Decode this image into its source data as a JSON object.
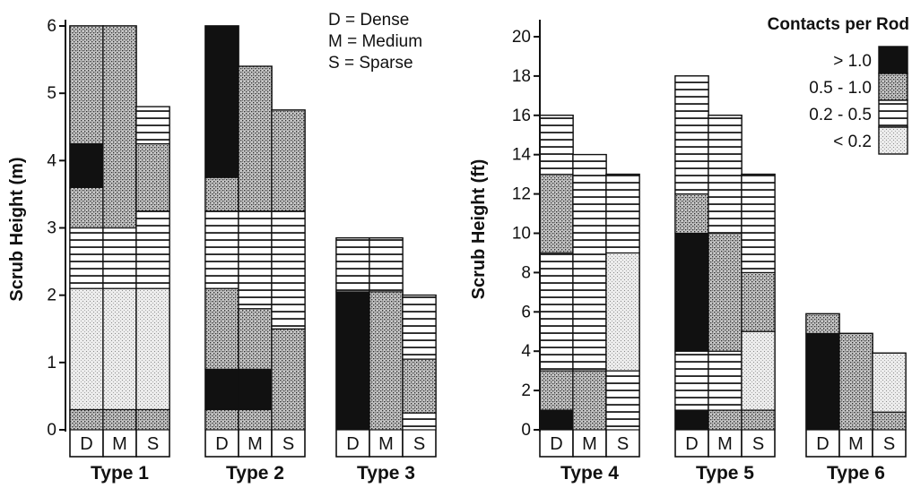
{
  "chart_data": [
    {
      "type": "bar",
      "stacked": true,
      "ylabel": "Scrub Height (m)",
      "ylim": [
        0,
        6
      ],
      "yticks": [
        "0",
        "1",
        "2",
        "3",
        "4",
        "5",
        "6"
      ],
      "categories": [
        "D",
        "M",
        "S"
      ],
      "notes": [
        "D = Dense",
        "M = Medium",
        "S = Sparse"
      ],
      "groups": [
        {
          "name": "Type 1",
          "bars": [
            {
              "cat": "D",
              "segments": [
                {
                  "class": "0.5 - 1.0",
                  "from": 0,
                  "to": 0.3
                },
                {
                  "class": "< 0.2",
                  "from": 0.3,
                  "to": 2.1
                },
                {
                  "class": "0.2 - 0.5",
                  "from": 2.1,
                  "to": 3.0
                },
                {
                  "class": "0.5 - 1.0",
                  "from": 3.0,
                  "to": 3.6
                },
                {
                  "class": "> 1.0",
                  "from": 3.6,
                  "to": 4.25
                },
                {
                  "class": "0.5 - 1.0",
                  "from": 4.25,
                  "to": 6.0
                }
              ]
            },
            {
              "cat": "M",
              "segments": [
                {
                  "class": "0.5 - 1.0",
                  "from": 0,
                  "to": 0.3
                },
                {
                  "class": "< 0.2",
                  "from": 0.3,
                  "to": 2.1
                },
                {
                  "class": "0.2 - 0.5",
                  "from": 2.1,
                  "to": 3.0
                },
                {
                  "class": "0.5 - 1.0",
                  "from": 3.0,
                  "to": 6.0
                }
              ]
            },
            {
              "cat": "S",
              "segments": [
                {
                  "class": "0.5 - 1.0",
                  "from": 0,
                  "to": 0.3
                },
                {
                  "class": "< 0.2",
                  "from": 0.3,
                  "to": 2.1
                },
                {
                  "class": "0.2 - 0.5",
                  "from": 2.1,
                  "to": 3.25
                },
                {
                  "class": "0.5 - 1.0",
                  "from": 3.25,
                  "to": 4.25
                },
                {
                  "class": "0.2 - 0.5",
                  "from": 4.25,
                  "to": 4.8
                }
              ]
            }
          ]
        },
        {
          "name": "Type 2",
          "bars": [
            {
              "cat": "D",
              "segments": [
                {
                  "class": "0.5 - 1.0",
                  "from": 0,
                  "to": 0.3
                },
                {
                  "class": "> 1.0",
                  "from": 0.3,
                  "to": 0.9
                },
                {
                  "class": "0.5 - 1.0",
                  "from": 0.9,
                  "to": 2.1
                },
                {
                  "class": "0.2 - 0.5",
                  "from": 2.1,
                  "to": 3.25
                },
                {
                  "class": "0.5 - 1.0",
                  "from": 3.25,
                  "to": 3.75
                },
                {
                  "class": "> 1.0",
                  "from": 3.75,
                  "to": 6.0
                }
              ]
            },
            {
              "cat": "M",
              "segments": [
                {
                  "class": "0.5 - 1.0",
                  "from": 0,
                  "to": 0.3
                },
                {
                  "class": "> 1.0",
                  "from": 0.3,
                  "to": 0.9
                },
                {
                  "class": "0.5 - 1.0",
                  "from": 0.9,
                  "to": 1.8
                },
                {
                  "class": "0.2 - 0.5",
                  "from": 1.8,
                  "to": 3.25
                },
                {
                  "class": "0.5 - 1.0",
                  "from": 3.25,
                  "to": 5.4
                }
              ]
            },
            {
              "cat": "S",
              "segments": [
                {
                  "class": "0.5 - 1.0",
                  "from": 0,
                  "to": 1.5
                },
                {
                  "class": "0.2 - 0.5",
                  "from": 1.5,
                  "to": 3.25
                },
                {
                  "class": "0.5 - 1.0",
                  "from": 3.25,
                  "to": 4.75
                }
              ]
            }
          ]
        },
        {
          "name": "Type 3",
          "bars": [
            {
              "cat": "D",
              "segments": [
                {
                  "class": "> 1.0",
                  "from": 0,
                  "to": 2.05
                },
                {
                  "class": "0.2 - 0.5",
                  "from": 2.05,
                  "to": 2.85
                }
              ]
            },
            {
              "cat": "M",
              "segments": [
                {
                  "class": "0.5 - 1.0",
                  "from": 0,
                  "to": 2.05
                },
                {
                  "class": "0.2 - 0.5",
                  "from": 2.05,
                  "to": 2.85
                }
              ]
            },
            {
              "cat": "S",
              "segments": [
                {
                  "class": "0.2 - 0.5",
                  "from": 0,
                  "to": 0.25
                },
                {
                  "class": "0.5 - 1.0",
                  "from": 0.25,
                  "to": 1.05
                },
                {
                  "class": "0.2 - 0.5",
                  "from": 1.05,
                  "to": 2.0
                }
              ]
            }
          ]
        }
      ]
    },
    {
      "type": "bar",
      "stacked": true,
      "ylabel": "Scrub Height (ft)",
      "ylim": [
        0,
        20
      ],
      "yticks": [
        "0",
        "2",
        "4",
        "6",
        "8",
        "10",
        "12",
        "14",
        "16",
        "18",
        "20"
      ],
      "categories": [
        "D",
        "M",
        "S"
      ],
      "groups": [
        {
          "name": "Type 4",
          "bars": [
            {
              "cat": "D",
              "segments": [
                {
                  "class": "> 1.0",
                  "from": 0,
                  "to": 1
                },
                {
                  "class": "0.5 - 1.0",
                  "from": 1,
                  "to": 3
                },
                {
                  "class": "0.2 - 0.5",
                  "from": 3,
                  "to": 9
                },
                {
                  "class": "0.5 - 1.0",
                  "from": 9,
                  "to": 13
                },
                {
                  "class": "0.2 - 0.5",
                  "from": 13,
                  "to": 16
                }
              ]
            },
            {
              "cat": "M",
              "segments": [
                {
                  "class": "0.5 - 1.0",
                  "from": 0,
                  "to": 3
                },
                {
                  "class": "0.2 - 0.5",
                  "from": 3,
                  "to": 14
                }
              ]
            },
            {
              "cat": "S",
              "segments": [
                {
                  "class": "0.2 - 0.5",
                  "from": 0,
                  "to": 3
                },
                {
                  "class": "< 0.2",
                  "from": 3,
                  "to": 9
                },
                {
                  "class": "0.2 - 0.5",
                  "from": 9,
                  "to": 13
                }
              ]
            }
          ]
        },
        {
          "name": "Type 5",
          "bars": [
            {
              "cat": "D",
              "segments": [
                {
                  "class": "> 1.0",
                  "from": 0,
                  "to": 1
                },
                {
                  "class": "0.2 - 0.5",
                  "from": 1,
                  "to": 4
                },
                {
                  "class": "> 1.0",
                  "from": 4,
                  "to": 10
                },
                {
                  "class": "0.5 - 1.0",
                  "from": 10,
                  "to": 12
                },
                {
                  "class": "0.2 - 0.5",
                  "from": 12,
                  "to": 18
                }
              ]
            },
            {
              "cat": "M",
              "segments": [
                {
                  "class": "0.5 - 1.0",
                  "from": 0,
                  "to": 1
                },
                {
                  "class": "0.2 - 0.5",
                  "from": 1,
                  "to": 4
                },
                {
                  "class": "0.5 - 1.0",
                  "from": 4,
                  "to": 10
                },
                {
                  "class": "0.2 - 0.5",
                  "from": 10,
                  "to": 16
                }
              ]
            },
            {
              "cat": "S",
              "segments": [
                {
                  "class": "0.5 - 1.0",
                  "from": 0,
                  "to": 1
                },
                {
                  "class": "< 0.2",
                  "from": 1,
                  "to": 5
                },
                {
                  "class": "0.5 - 1.0",
                  "from": 5,
                  "to": 8
                },
                {
                  "class": "0.2 - 0.5",
                  "from": 8,
                  "to": 13
                }
              ]
            }
          ]
        },
        {
          "name": "Type 6",
          "bars": [
            {
              "cat": "D",
              "segments": [
                {
                  "class": "> 1.0",
                  "from": 0,
                  "to": 4.9
                },
                {
                  "class": "0.5 - 1.0",
                  "from": 4.9,
                  "to": 5.9
                }
              ]
            },
            {
              "cat": "M",
              "segments": [
                {
                  "class": "0.5 - 1.0",
                  "from": 0,
                  "to": 4.9
                }
              ]
            },
            {
              "cat": "S",
              "segments": [
                {
                  "class": "0.5 - 1.0",
                  "from": 0,
                  "to": 0.9
                },
                {
                  "class": "< 0.2",
                  "from": 0.9,
                  "to": 3.9
                }
              ]
            }
          ]
        }
      ]
    }
  ],
  "legend": {
    "title": "Contacts per Rod",
    "placement": "top-right",
    "items": [
      {
        "label": "> 1.0",
        "pattern": "solid-black"
      },
      {
        "label": "0.5 - 1.0",
        "pattern": "dense-stipple"
      },
      {
        "label": "0.2 - 0.5",
        "pattern": "horizontal-lines"
      },
      {
        "label": "< 0.2",
        "pattern": "light-stipple"
      }
    ]
  }
}
